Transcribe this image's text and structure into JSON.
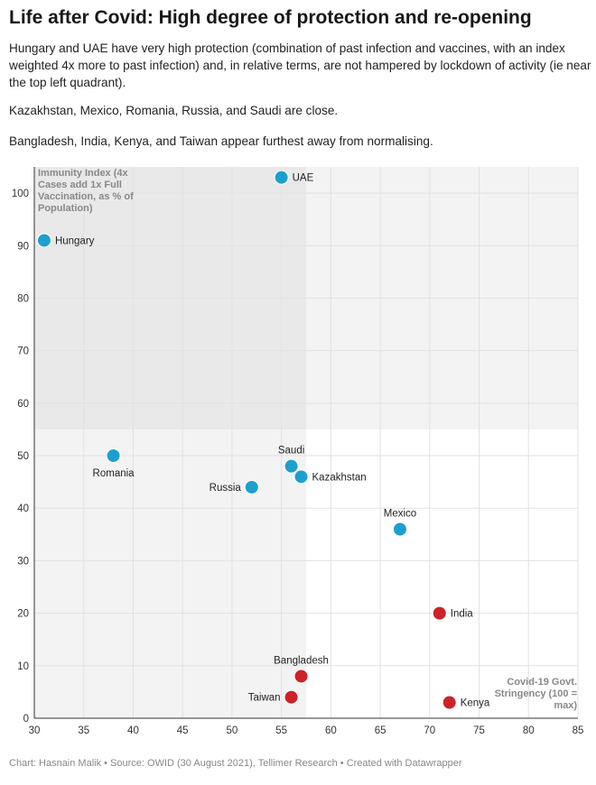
{
  "title": "Life after Covid: High degree of protection and re-opening",
  "paragraphs": [
    "Hungary and UAE have very high protection (combination of past infection and vaccines, with an index weighted 4x more to past infection) and, in relative terms, are not hampered by lockdown of activity (ie near the top left quadrant).",
    "Kazakhstan, Mexico, Romania, Russia, and Saudi are close.",
    "Bangladesh, India, Kenya, and Taiwan appear furthest away from normalising."
  ],
  "footer": "Chart: Hasnain Malik • Source: OWID (30 August 2021), Tellimer Research • Created with Datawrapper",
  "colors": {
    "blue": "#1d9fcd",
    "red": "#cc2228",
    "shade_light": "#f3f3f3",
    "shade_dark": "#e9e9e9"
  },
  "chart_data": {
    "type": "scatter",
    "xlabel": [
      "Covid-19 Govt.",
      "Stringency (100 =",
      "max)"
    ],
    "ylabel": [
      "Immunity Index (4x",
      "Cases add 1x Full",
      "Vaccination, as % of",
      "Population)"
    ],
    "xlim": [
      30,
      85
    ],
    "ylim": [
      0,
      105
    ],
    "xticks": [
      30,
      35,
      40,
      45,
      50,
      55,
      60,
      65,
      70,
      75,
      80,
      85
    ],
    "yticks": [
      0,
      10,
      20,
      30,
      40,
      50,
      60,
      70,
      80,
      90,
      100
    ],
    "grid": true,
    "shaded_regions": {
      "x_divider": 57.5,
      "y_divider": 55
    },
    "points": [
      {
        "label": "UAE",
        "x": 55,
        "y": 103,
        "color": "blue",
        "label_pos": "right"
      },
      {
        "label": "Hungary",
        "x": 31,
        "y": 91,
        "color": "blue",
        "label_pos": "right"
      },
      {
        "label": "Romania",
        "x": 38,
        "y": 50,
        "color": "blue",
        "label_pos": "below"
      },
      {
        "label": "Saudi",
        "x": 56,
        "y": 48,
        "color": "blue",
        "label_pos": "above"
      },
      {
        "label": "Kazakhstan",
        "x": 57,
        "y": 46,
        "color": "blue",
        "label_pos": "right"
      },
      {
        "label": "Russia",
        "x": 52,
        "y": 44,
        "color": "blue",
        "label_pos": "left"
      },
      {
        "label": "Mexico",
        "x": 67,
        "y": 36,
        "color": "blue",
        "label_pos": "above"
      },
      {
        "label": "India",
        "x": 71,
        "y": 20,
        "color": "red",
        "label_pos": "right"
      },
      {
        "label": "Bangladesh",
        "x": 57,
        "y": 8,
        "color": "red",
        "label_pos": "above"
      },
      {
        "label": "Taiwan",
        "x": 56,
        "y": 4,
        "color": "red",
        "label_pos": "left"
      },
      {
        "label": "Kenya",
        "x": 72,
        "y": 3,
        "color": "red",
        "label_pos": "right"
      }
    ]
  }
}
